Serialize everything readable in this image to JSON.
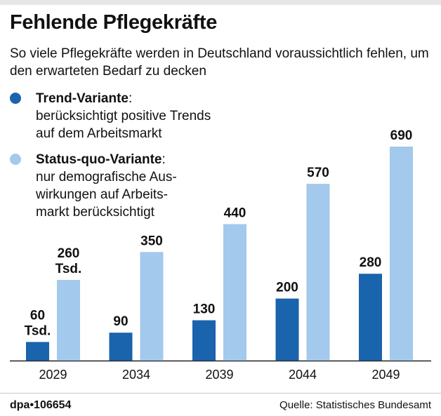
{
  "header": {
    "title": "Fehlende Pflegekräfte",
    "subtitle": "So viele Pflegekräfte werden in Deutschland voraussichtlich fehlen, um den erwarteten Bedarf zu decken"
  },
  "legend": [
    {
      "name": "Trend-Variante",
      "suffix": ":",
      "desc_line1": "berücksichtigt positive Trends",
      "desc_line2": "auf dem Arbeitsmarkt",
      "desc_line3": "",
      "color": "#1a63ad"
    },
    {
      "name": "Status-quo-Variante",
      "suffix": ":",
      "desc_line1": "nur demografische Aus-",
      "desc_line2": "wirkungen auf Arbeits-",
      "desc_line3": "markt berücksichtigt",
      "color": "#a3c9ec"
    }
  ],
  "footer": {
    "credit": "dpa•106654",
    "source": "Quelle: Statistisches Bundesamt"
  },
  "chart_data": {
    "type": "bar",
    "categories": [
      "2029",
      "2034",
      "2039",
      "2044",
      "2049"
    ],
    "unit_label": "Tsd.",
    "ylim": [
      0,
      700
    ],
    "series": [
      {
        "name": "Trend-Variante",
        "values": [
          60,
          90,
          130,
          200,
          280
        ],
        "color": "#1a63ad"
      },
      {
        "name": "Status-quo-Variante",
        "values": [
          260,
          350,
          440,
          570,
          690
        ],
        "color": "#a3c9ec"
      }
    ]
  }
}
